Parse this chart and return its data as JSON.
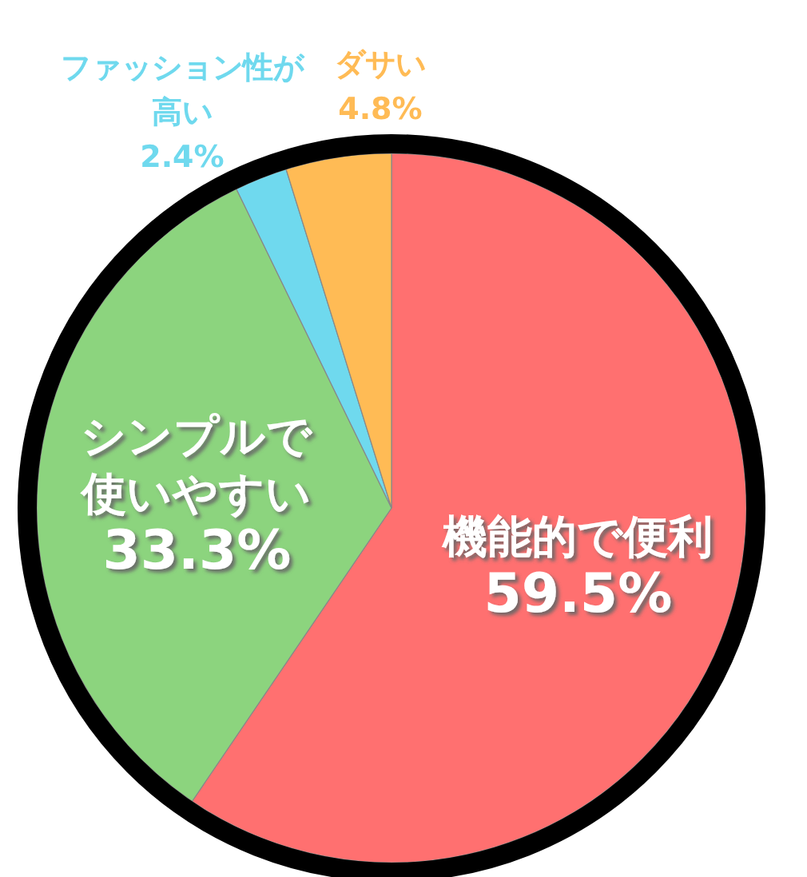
{
  "chart_data": {
    "type": "pie",
    "categories": [
      "機能的で便利",
      "シンプルで使いやすい",
      "ファッション性が高い",
      "ダサい"
    ],
    "value_labels": [
      "59.5%",
      "33.3%",
      "2.4%",
      "4.8%"
    ],
    "values": [
      59.5,
      33.3,
      2.4,
      4.8
    ],
    "colors": [
      "#ff7070",
      "#8cd47e",
      "#6fd9ee",
      "#ffbb55"
    ]
  }
}
